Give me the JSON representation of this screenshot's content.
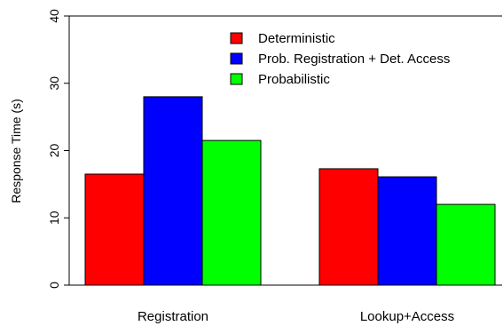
{
  "chart_data": {
    "type": "bar",
    "title": "",
    "xlabel": "",
    "ylabel": "Response Time (s)",
    "ylim": [
      0,
      40
    ],
    "yticks": [
      0,
      10,
      20,
      30,
      40
    ],
    "grid": false,
    "legend_position": "top-right",
    "categories": [
      "Registration",
      "Lookup+Access"
    ],
    "series": [
      {
        "name": "Deterministic",
        "color": "#ff0000",
        "values": [
          16.5,
          17.3
        ]
      },
      {
        "name": "Prob. Registration + Det. Access",
        "color": "#0000ff",
        "values": [
          28.0,
          16.1
        ]
      },
      {
        "name": "Probabilistic",
        "color": "#00ff00",
        "values": [
          21.5,
          12.0
        ]
      }
    ]
  }
}
